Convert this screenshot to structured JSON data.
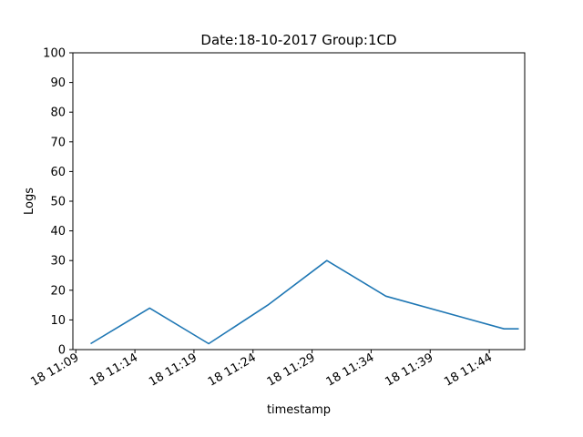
{
  "chart_data": {
    "type": "line",
    "title": "Date:18-10-2017  Group:1CD",
    "xlabel": "timestamp",
    "ylabel": "Logs",
    "ylim": [
      0,
      100
    ],
    "yticks": [
      0,
      10,
      20,
      30,
      40,
      50,
      60,
      70,
      80,
      90,
      100
    ],
    "xlim": [
      "2017-10-18 11:08:45",
      "2017-10-18 11:47:00"
    ],
    "xticks": [
      "2017-10-18 11:09",
      "2017-10-18 11:14",
      "2017-10-18 11:19",
      "2017-10-18 11:24",
      "2017-10-18 11:29",
      "2017-10-18 11:34",
      "2017-10-18 11:39",
      "2017-10-18 11:44"
    ],
    "xtick_labels": [
      "18 11:09",
      "18 11:14",
      "18 11:19",
      "18 11:24",
      "18 11:29",
      "18 11:34",
      "18 11:39",
      "18 11:44"
    ],
    "grid": false,
    "series": [
      {
        "color": "#1f77b4",
        "x": [
          "2017-10-18 11:10:15",
          "2017-10-18 11:15:15",
          "2017-10-18 11:20:15",
          "2017-10-18 11:25:15",
          "2017-10-18 11:30:15",
          "2017-10-18 11:35:15",
          "2017-10-18 11:45:15",
          "2017-10-18 11:46:30"
        ],
        "values": [
          2,
          14,
          2,
          15,
          30,
          18,
          7,
          7
        ]
      }
    ]
  }
}
